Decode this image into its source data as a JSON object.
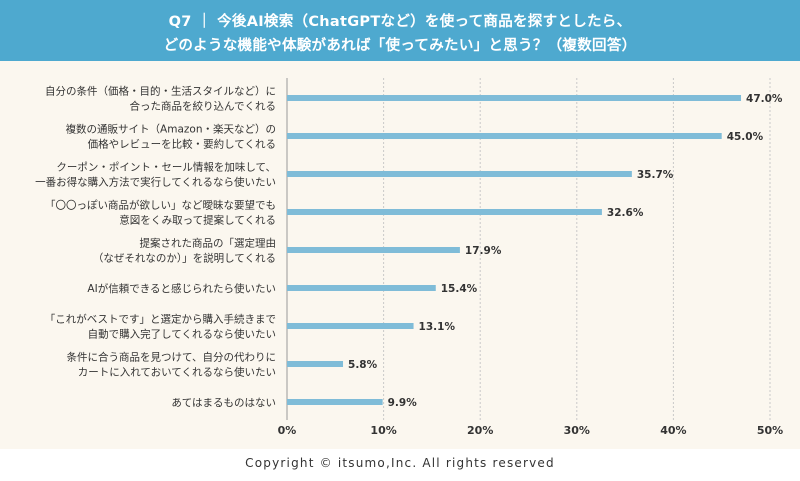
{
  "header": {
    "line1": "Q7 ｜ 今後AI検索（ChatGPTなど）を使って商品を探すとしたら、",
    "line2": "どのような機能や体験があれば「使ってみたい」と思う？（複数回答）"
  },
  "footer": {
    "copyright": "Copyright © itsumo,Inc. All rights reserved"
  },
  "colors": {
    "header": "#4ea9cf",
    "bar": "#7fbcd8",
    "background": "#fbf7ef"
  },
  "chart_data": {
    "type": "bar",
    "orientation": "horizontal",
    "categories": [
      [
        "自分の条件（価格・目的・生活スタイルなど）に",
        "合った商品を絞り込んでくれる"
      ],
      [
        "複数の通販サイト（Amazon・楽天など）の",
        "価格やレビューを比較・要約してくれる"
      ],
      [
        "クーポン・ポイント・セール情報を加味して、",
        "一番お得な購入方法で実行してくれるなら使いたい"
      ],
      [
        "「〇〇っぽい商品が欲しい」など曖昧な要望でも",
        "意図をくみ取って提案してくれる"
      ],
      [
        "提案された商品の「選定理由",
        "（なぜそれなのか）」を説明してくれる"
      ],
      [
        "AIが信頼できると感じられたら使いたい"
      ],
      [
        "「これがベストです」と選定から購入手続きまで",
        "自動で購入完了してくれるなら使いたい"
      ],
      [
        "条件に合う商品を見つけて、自分の代わりに",
        "カートに入れておいてくれるなら使いたい"
      ],
      [
        "あてはまるものはない"
      ]
    ],
    "values": [
      47.0,
      45.0,
      35.7,
      32.6,
      17.9,
      15.4,
      13.1,
      5.8,
      9.9
    ],
    "value_labels": [
      "47.0%",
      "45.0%",
      "35.7%",
      "32.6%",
      "17.9%",
      "15.4%",
      "13.1%",
      "5.8%",
      "9.9%"
    ],
    "xlim": [
      0,
      50
    ],
    "xticks": [
      0,
      10,
      20,
      30,
      40,
      50
    ],
    "xtick_labels": [
      "0%",
      "10%",
      "20%",
      "30%",
      "40%",
      "50%"
    ],
    "grid": "vertical dashed"
  }
}
